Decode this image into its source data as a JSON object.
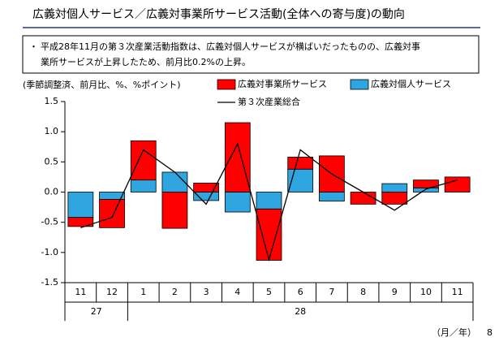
{
  "chart_data": {
    "type": "bar",
    "title": "広義対個人サービス／広義対事業所サービス活動(全体への寄与度)の動向",
    "note_bullet": "・",
    "note_lines": [
      "平成28年11月の第３次産業活動指数は、広義対個人サービスが横ばいだったものの、広義対事",
      "業所サービスが上昇したため、前月比0.2%の上昇。"
    ],
    "y_label": "(季節調整済、前月比、%、%ポイント)",
    "x_label": "（月／年）",
    "page_number": "8",
    "categories": [
      "11",
      "12",
      "1",
      "2",
      "3",
      "4",
      "5",
      "6",
      "7",
      "8",
      "9",
      "10",
      "11"
    ],
    "groups": [
      {
        "label": "27",
        "count": 2
      },
      {
        "label": "28",
        "count": 11
      }
    ],
    "series": [
      {
        "name": "広義対事業所サービス",
        "color": "#ff0000",
        "values": [
          -0.15,
          -0.47,
          0.65,
          -0.6,
          0.15,
          1.15,
          -0.85,
          0.2,
          0.6,
          -0.2,
          -0.2,
          0.13,
          0.25
        ]
      },
      {
        "name": "広義対個人サービス",
        "color": "#2fa6e0",
        "values": [
          -0.42,
          -0.12,
          0.2,
          0.33,
          -0.14,
          -0.33,
          -0.28,
          0.38,
          -0.15,
          0.0,
          0.14,
          0.07,
          0.0
        ]
      },
      {
        "name": "第３次産業総合",
        "type": "line",
        "color": "#000000",
        "values": [
          -0.59,
          -0.42,
          0.7,
          0.33,
          -0.2,
          0.8,
          -1.12,
          0.7,
          0.3,
          0.0,
          -0.3,
          0.05,
          0.2
        ]
      }
    ],
    "ylim": [
      -1.5,
      1.5
    ],
    "yticks": [
      1.5,
      {
        "value": 1,
        "label": "1.0"
      },
      0.5,
      {
        "value": 0,
        "label": "0.0"
      },
      -0.5,
      {
        "value": -1,
        "label": "-1.0"
      },
      -1.5
    ]
  }
}
